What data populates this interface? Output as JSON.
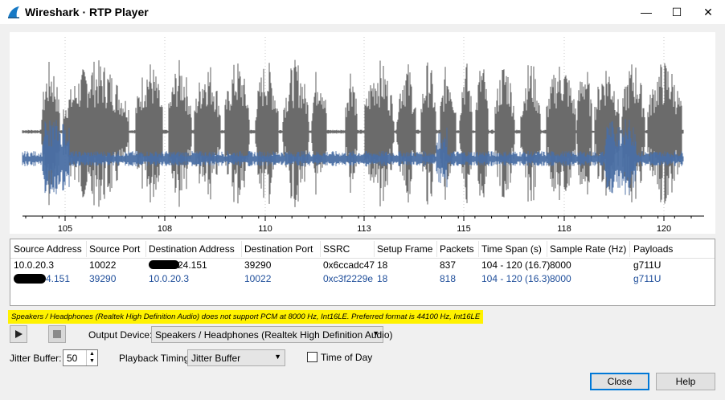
{
  "window": {
    "title": "Wireshark · RTP Player",
    "minimize_glyph": "—",
    "maximize_glyph": "☐",
    "close_glyph": "✕"
  },
  "plot": {
    "x_ticks": [
      "105",
      "108",
      "110",
      "113",
      "115",
      "118",
      "120"
    ],
    "colors": {
      "stream1": "#6b6b6b",
      "stream2": "#4a6fa5"
    }
  },
  "table": {
    "headers": [
      "Source Address",
      "Source Port",
      "Destination Address",
      "Destination Port",
      "SSRC",
      "Setup Frame",
      "Packets",
      "Time Span (s)",
      "Sample Rate (Hz)",
      "Payloads"
    ],
    "rows": [
      {
        "src": "10.0.20.3",
        "sport": "10022",
        "dst": "24.151",
        "dport": "39290",
        "ssrc": "0x6ccadc47",
        "frame": "18",
        "packets": "837",
        "span": "104 - 120 (16.7)",
        "rate": "8000",
        "payload": "g711U"
      },
      {
        "src": "4.151",
        "sport": "39290",
        "dst": "10.0.20.3",
        "dport": "10022",
        "ssrc": "0xc3f2229e",
        "frame": "18",
        "packets": "818",
        "span": "104 - 120 (16.3)",
        "rate": "8000",
        "payload": "g711U"
      }
    ]
  },
  "warning": "Speakers / Headphones (Realtek High Definition Audio) does not support PCM at 8000 Hz, Int16LE. Preferred format is 44100 Hz, Int16LE",
  "controls": {
    "output_device_label": "Output Device:",
    "output_device_value": "Speakers / Headphones (Realtek High Definition Audio)",
    "jitter_label": "Jitter Buffer:",
    "jitter_value": "50",
    "timing_label": "Playback Timing:",
    "timing_value": "Jitter Buffer",
    "time_of_day_label": "Time of Day",
    "time_of_day_checked": false
  },
  "buttons": {
    "close": "Close",
    "help": "Help"
  }
}
